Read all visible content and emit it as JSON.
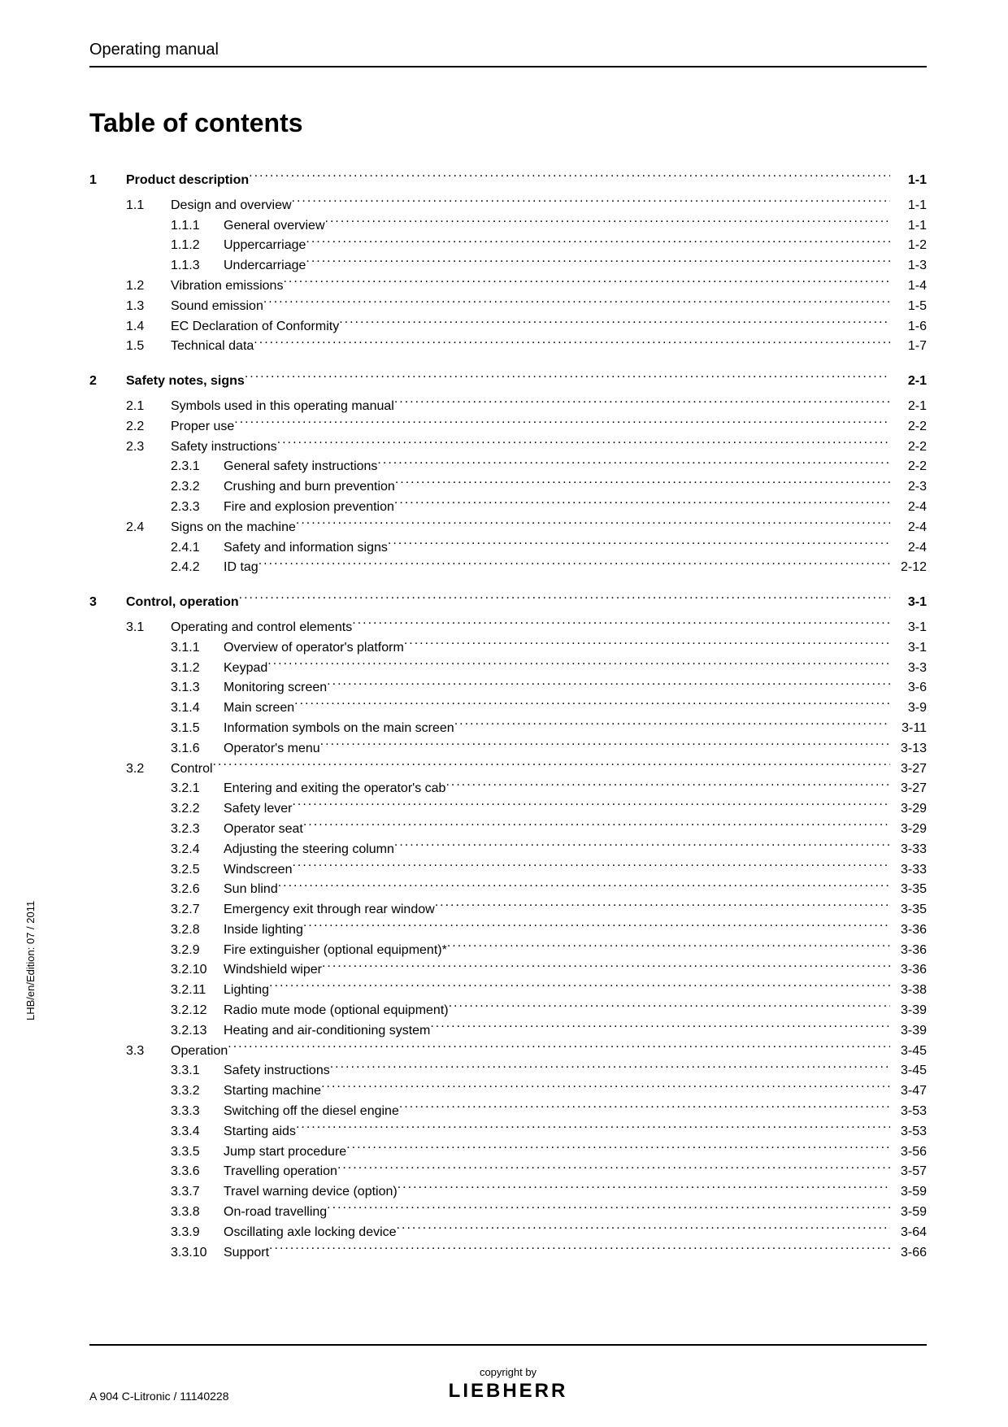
{
  "header": "Operating manual",
  "title": "Table of contents",
  "side_text": "LHB/en/Edition: 07 / 2011",
  "footer": {
    "left": "A 904 C-Litronic / 11140228",
    "copyright": "copyright by",
    "logo": "LIEBHERR"
  },
  "toc": [
    {
      "level": 0,
      "num": "1",
      "label": "Product description",
      "page": "1-1",
      "bold": true
    },
    {
      "level": 1,
      "num": "1.1",
      "label": "Design and overview",
      "page": "1-1"
    },
    {
      "level": 2,
      "num": "1.1.1",
      "label": "General overview",
      "page": "1-1"
    },
    {
      "level": 2,
      "num": "1.1.2",
      "label": "Uppercarriage",
      "page": "1-2"
    },
    {
      "level": 2,
      "num": "1.1.3",
      "label": "Undercarriage",
      "page": "1-3"
    },
    {
      "level": 1,
      "num": "1.2",
      "label": "Vibration emissions",
      "page": "1-4"
    },
    {
      "level": 1,
      "num": "1.3",
      "label": "Sound emission",
      "page": "1-5"
    },
    {
      "level": 1,
      "num": "1.4",
      "label": "EC Declaration of Conformity",
      "page": "1-6"
    },
    {
      "level": 1,
      "num": "1.5",
      "label": "Technical data",
      "page": "1-7"
    },
    {
      "level": 0,
      "num": "2",
      "label": "Safety notes, signs",
      "page": "2-1",
      "bold": true,
      "gap": true
    },
    {
      "level": 1,
      "num": "2.1",
      "label": "Symbols used in this operating manual",
      "page": "2-1"
    },
    {
      "level": 1,
      "num": "2.2",
      "label": "Proper use",
      "page": "2-2"
    },
    {
      "level": 1,
      "num": "2.3",
      "label": "Safety instructions",
      "page": "2-2"
    },
    {
      "level": 2,
      "num": "2.3.1",
      "label": "General safety instructions",
      "page": "2-2"
    },
    {
      "level": 2,
      "num": "2.3.2",
      "label": "Crushing and burn prevention",
      "page": "2-3"
    },
    {
      "level": 2,
      "num": "2.3.3",
      "label": "Fire and explosion prevention",
      "page": "2-4"
    },
    {
      "level": 1,
      "num": "2.4",
      "label": "Signs on the machine",
      "page": "2-4"
    },
    {
      "level": 2,
      "num": "2.4.1",
      "label": "Safety and information signs",
      "page": "2-4"
    },
    {
      "level": 2,
      "num": "2.4.2",
      "label": "ID tag",
      "page": "2-12"
    },
    {
      "level": 0,
      "num": "3",
      "label": "Control, operation",
      "page": "3-1",
      "bold": true,
      "gap": true
    },
    {
      "level": 1,
      "num": "3.1",
      "label": "Operating and control elements",
      "page": "3-1"
    },
    {
      "level": 2,
      "num": "3.1.1",
      "label": "Overview of operator's platform",
      "page": "3-1"
    },
    {
      "level": 2,
      "num": "3.1.2",
      "label": "Keypad",
      "page": "3-3"
    },
    {
      "level": 2,
      "num": "3.1.3",
      "label": "Monitoring screen",
      "page": "3-6"
    },
    {
      "level": 2,
      "num": "3.1.4",
      "label": "Main screen",
      "page": "3-9"
    },
    {
      "level": 2,
      "num": "3.1.5",
      "label": "Information symbols on the main screen",
      "page": "3-11"
    },
    {
      "level": 2,
      "num": "3.1.6",
      "label": "Operator's menu",
      "page": "3-13"
    },
    {
      "level": 1,
      "num": "3.2",
      "label": "Control",
      "page": "3-27"
    },
    {
      "level": 2,
      "num": "3.2.1",
      "label": "Entering and exiting the operator's cab",
      "page": "3-27"
    },
    {
      "level": 2,
      "num": "3.2.2",
      "label": "Safety lever",
      "page": "3-29"
    },
    {
      "level": 2,
      "num": "3.2.3",
      "label": "Operator seat",
      "page": "3-29"
    },
    {
      "level": 2,
      "num": "3.2.4",
      "label": "Adjusting the steering column",
      "page": "3-33"
    },
    {
      "level": 2,
      "num": "3.2.5",
      "label": "Windscreen",
      "page": "3-33"
    },
    {
      "level": 2,
      "num": "3.2.6",
      "label": "Sun blind",
      "page": "3-35"
    },
    {
      "level": 2,
      "num": "3.2.7",
      "label": "Emergency exit through rear window",
      "page": "3-35"
    },
    {
      "level": 2,
      "num": "3.2.8",
      "label": "Inside lighting",
      "page": "3-36"
    },
    {
      "level": 2,
      "num": "3.2.9",
      "label": "Fire extinguisher (optional equipment)*",
      "page": "3-36"
    },
    {
      "level": 2,
      "num": "3.2.10",
      "label": "Windshield wiper",
      "page": "3-36"
    },
    {
      "level": 2,
      "num": "3.2.11",
      "label": "Lighting",
      "page": "3-38"
    },
    {
      "level": 2,
      "num": "3.2.12",
      "label": "Radio mute mode (optional equipment)",
      "page": "3-39"
    },
    {
      "level": 2,
      "num": "3.2.13",
      "label": "Heating and air-conditioning system",
      "page": "3-39"
    },
    {
      "level": 1,
      "num": "3.3",
      "label": "Operation",
      "page": "3-45"
    },
    {
      "level": 2,
      "num": "3.3.1",
      "label": "Safety instructions",
      "page": "3-45"
    },
    {
      "level": 2,
      "num": "3.3.2",
      "label": "Starting machine",
      "page": "3-47"
    },
    {
      "level": 2,
      "num": "3.3.3",
      "label": "Switching off the diesel engine",
      "page": "3-53"
    },
    {
      "level": 2,
      "num": "3.3.4",
      "label": "Starting aids",
      "page": "3-53"
    },
    {
      "level": 2,
      "num": "3.3.5",
      "label": "Jump start procedure",
      "page": "3-56"
    },
    {
      "level": 2,
      "num": "3.3.6",
      "label": "Travelling operation",
      "page": "3-57"
    },
    {
      "level": 2,
      "num": "3.3.7",
      "label": "Travel warning device (option)",
      "page": "3-59"
    },
    {
      "level": 2,
      "num": "3.3.8",
      "label": "On-road travelling",
      "page": "3-59"
    },
    {
      "level": 2,
      "num": "3.3.9",
      "label": "Oscillating axle locking device",
      "page": "3-64"
    },
    {
      "level": 2,
      "num": "3.3.10",
      "label": "Support",
      "page": "3-66"
    }
  ]
}
